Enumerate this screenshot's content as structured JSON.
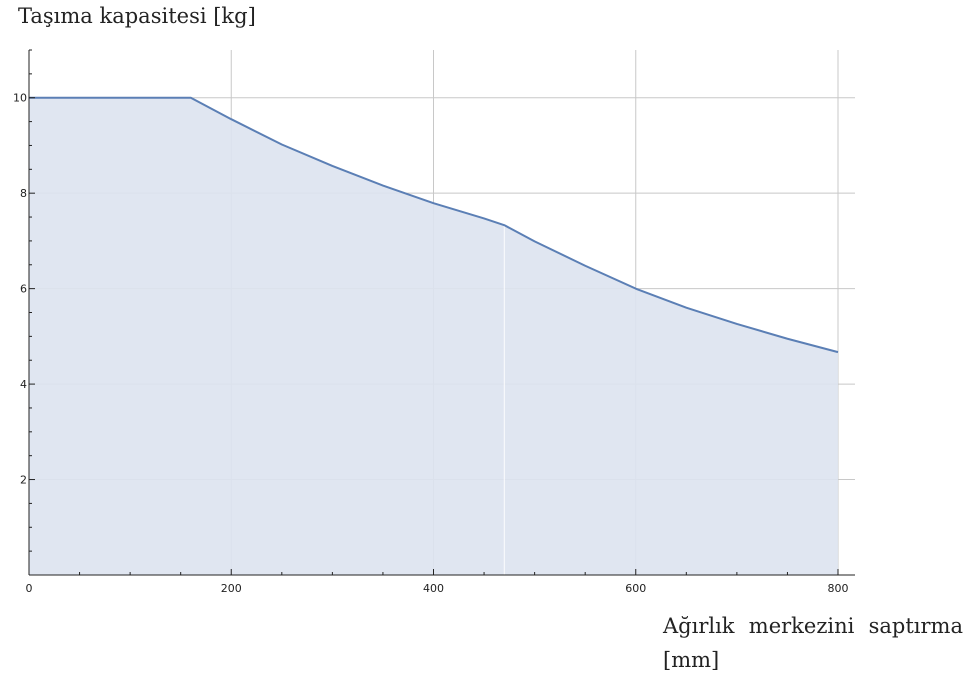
{
  "chart_data": {
    "type": "area",
    "ylabel": "Taşıma kapasitesi [kg]",
    "xlabel": "Ağırlık merkezini saptırma [mm]",
    "xlim": [
      0,
      800
    ],
    "ylim": [
      0,
      11
    ],
    "xticks": [
      0,
      200,
      400,
      600,
      800
    ],
    "yticks": [
      2,
      4,
      6,
      8,
      10
    ],
    "grid": true,
    "series": [
      {
        "x": [
          0,
          160,
          200,
          250,
          300,
          350,
          400,
          450,
          470,
          500,
          550,
          600,
          650,
          700,
          750,
          800
        ],
        "y": [
          10,
          10,
          9.55,
          9.02,
          8.57,
          8.16,
          7.79,
          7.47,
          7.33,
          6.99,
          6.48,
          6.0,
          5.6,
          5.26,
          4.95,
          4.67
        ]
      }
    ],
    "colors": {
      "line": "#5b7fb5",
      "fill": "#dde3f0",
      "grid": "#c8c8c8",
      "axis": "#222222"
    }
  }
}
